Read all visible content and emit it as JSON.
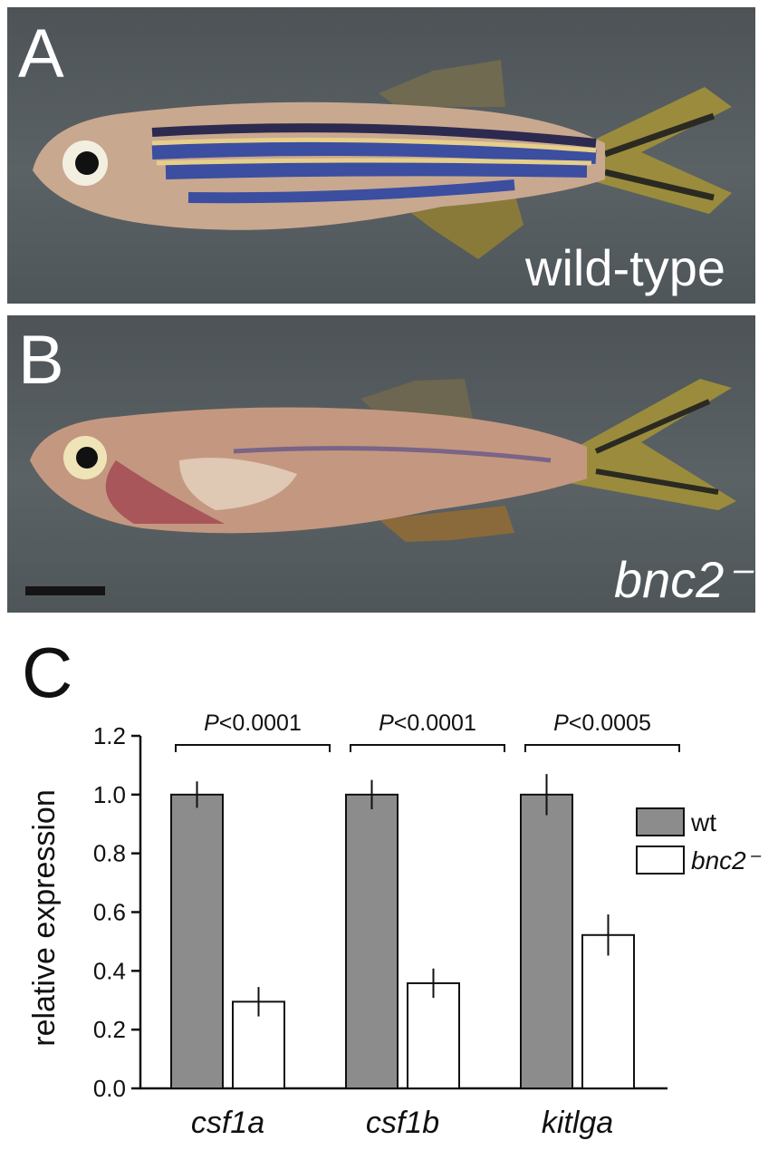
{
  "panels": {
    "a": {
      "letter": "A",
      "genotype": "wild-type"
    },
    "b": {
      "letter": "B",
      "genotype": "bnc2⁻"
    },
    "c": {
      "letter": "C"
    }
  },
  "colors": {
    "wt_bar": "#8c8c8c",
    "mutant_bar": "#ffffff"
  },
  "chart_data": {
    "type": "bar",
    "categories": [
      "csf1a",
      "csf1b",
      "kitlga"
    ],
    "series": [
      {
        "name": "wt",
        "values": [
          1.0,
          1.0,
          1.0
        ],
        "errors": [
          0.045,
          0.05,
          0.07
        ]
      },
      {
        "name": "bnc2⁻",
        "values": [
          0.295,
          0.358,
          0.522
        ],
        "errors": [
          0.05,
          0.05,
          0.07
        ]
      }
    ],
    "significance": [
      "P<0.0001",
      "P<0.0001",
      "P<0.0005"
    ],
    "ylabel": "relative expression",
    "ylim": [
      0.0,
      1.2
    ],
    "yticks": [
      "0.0",
      "0.2",
      "0.4",
      "0.6",
      "0.8",
      "1.0",
      "1.2"
    ],
    "legend": "right",
    "grid": false
  }
}
